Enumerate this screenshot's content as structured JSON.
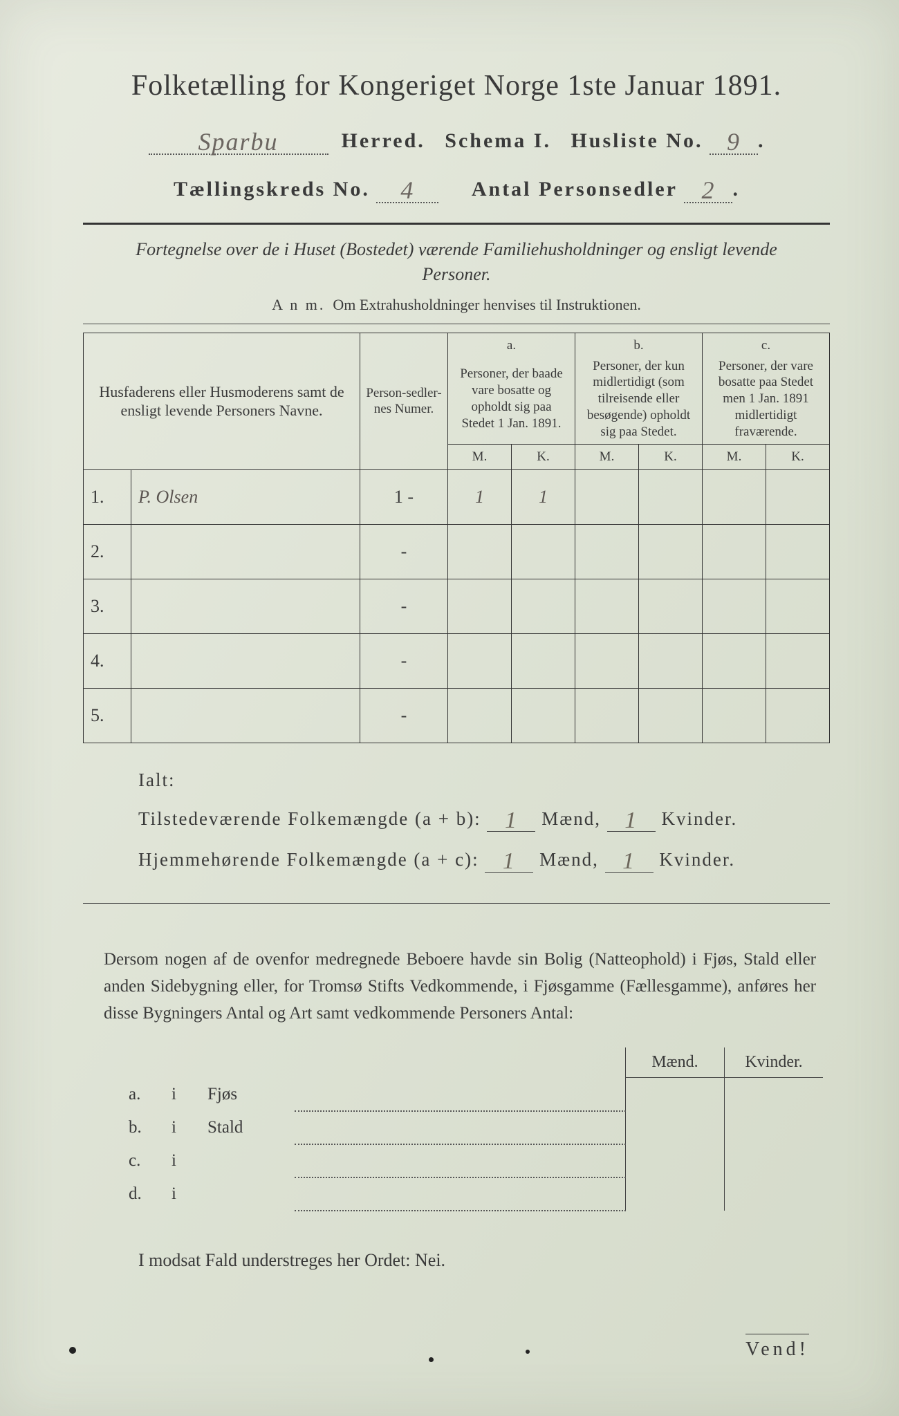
{
  "background_color": "#dde2d4",
  "text_color": "#3a3a3a",
  "handwriting_color": "#6b6560",
  "title": "Folketælling for Kongeriget Norge 1ste Januar 1891.",
  "line2": {
    "herred_hand": "Sparbu",
    "herred_label": "Herred.",
    "schema_label": "Schema I.",
    "husliste_label": "Husliste No.",
    "husliste_no": "9"
  },
  "line3": {
    "kreds_label": "Tællingskreds No.",
    "kreds_no": "4",
    "antal_label": "Antal Personsedler",
    "antal_no": "2"
  },
  "subtitle": "Fortegnelse over de i Huset (Bostedet) værende Familiehusholdninger og ensligt levende Personer.",
  "anm": {
    "prefix": "A n m.",
    "text": "Om Extrahusholdninger henvises til Instruktionen."
  },
  "table": {
    "col_name": "Husfaderens eller Husmoderens samt de ensligt levende Personers Navne.",
    "col_num": "Person-sedler-nes Numer.",
    "col_a_tag": "a.",
    "col_a": "Personer, der baade vare bosatte og opholdt sig paa Stedet 1 Jan. 1891.",
    "col_b_tag": "b.",
    "col_b": "Personer, der kun midlertidigt (som tilreisende eller besøgende) opholdt sig paa Stedet.",
    "col_c_tag": "c.",
    "col_c": "Personer, der vare bosatte paa Stedet men 1 Jan. 1891 midlertidigt fraværende.",
    "M": "M.",
    "K": "K.",
    "rows": [
      {
        "n": "1.",
        "name": "P. Olsen",
        "num": "1 -",
        "aM": "1",
        "aK": "1",
        "bM": "",
        "bK": "",
        "cM": "",
        "cK": ""
      },
      {
        "n": "2.",
        "name": "",
        "num": "-",
        "aM": "",
        "aK": "",
        "bM": "",
        "bK": "",
        "cM": "",
        "cK": ""
      },
      {
        "n": "3.",
        "name": "",
        "num": "-",
        "aM": "",
        "aK": "",
        "bM": "",
        "bK": "",
        "cM": "",
        "cK": ""
      },
      {
        "n": "4.",
        "name": "",
        "num": "-",
        "aM": "",
        "aK": "",
        "bM": "",
        "bK": "",
        "cM": "",
        "cK": ""
      },
      {
        "n": "5.",
        "name": "",
        "num": "-",
        "aM": "",
        "aK": "",
        "bM": "",
        "bK": "",
        "cM": "",
        "cK": ""
      }
    ]
  },
  "ialt": {
    "ialt_label": "Ialt:",
    "tilst_label": "Tilstedeværende Folkemængde (a + b):",
    "hjem_label": "Hjemmehørende Folkemængde (a + c):",
    "maend": "Mænd,",
    "kvinder": "Kvinder.",
    "tilst_m": "1",
    "tilst_k": "1",
    "hjem_m": "1",
    "hjem_k": "1"
  },
  "para": "Dersom nogen af de ovenfor medregnede Beboere havde sin Bolig (Natteophold) i Fjøs, Stald eller anden Sidebygning eller, for Tromsø Stifts Vedkommende, i Fjøsgamme (Fællesgamme), anføres her disse Bygningers Antal og Art samt vedkommende Personers Antal:",
  "outbuild": {
    "maend": "Mænd.",
    "kvinder": "Kvinder.",
    "rows": [
      {
        "tag": "a.",
        "i": "i",
        "label": "Fjøs"
      },
      {
        "tag": "b.",
        "i": "i",
        "label": "Stald"
      },
      {
        "tag": "c.",
        "i": "i",
        "label": ""
      },
      {
        "tag": "d.",
        "i": "i",
        "label": ""
      }
    ]
  },
  "nei_line": "I modsat Fald understreges her Ordet: Nei.",
  "vend": "Vend!"
}
